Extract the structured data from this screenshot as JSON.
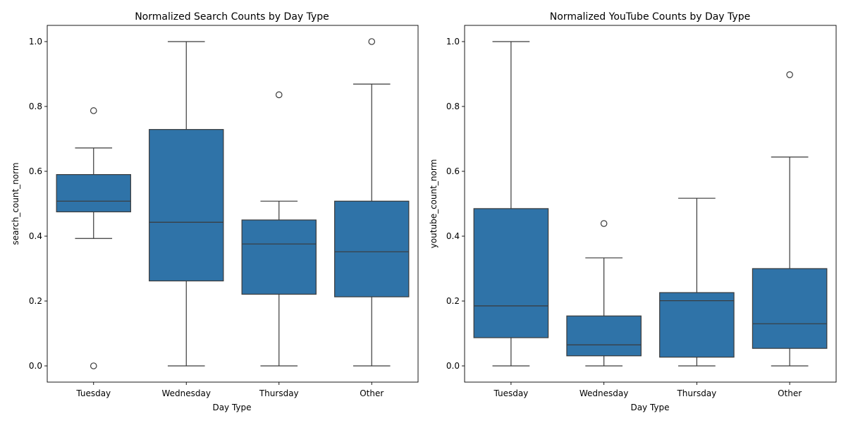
{
  "chart_data": [
    {
      "type": "box",
      "title": "Normalized Search Counts by Day Type",
      "xlabel": "Day Type",
      "ylabel": "search_count_norm",
      "categories": [
        "Tuesday",
        "Wednesday",
        "Thursday",
        "Other"
      ],
      "ylim": [
        -0.05,
        1.05
      ],
      "yticks": [
        0.0,
        0.2,
        0.4,
        0.6,
        0.8,
        1.0
      ],
      "color": "#2f73a8",
      "boxes": [
        {
          "category": "Tuesday",
          "whisker_low": 0.393,
          "q1": 0.475,
          "median": 0.508,
          "q3": 0.59,
          "whisker_high": 0.672,
          "outliers": [
            0.787,
            0.0
          ]
        },
        {
          "category": "Wednesday",
          "whisker_low": 0.0,
          "q1": 0.262,
          "median": 0.443,
          "q3": 0.729,
          "whisker_high": 1.0,
          "outliers": []
        },
        {
          "category": "Thursday",
          "whisker_low": 0.0,
          "q1": 0.221,
          "median": 0.376,
          "q3": 0.45,
          "whisker_high": 0.508,
          "outliers": [
            0.836
          ]
        },
        {
          "category": "Other",
          "whisker_low": 0.0,
          "q1": 0.213,
          "median": 0.352,
          "q3": 0.508,
          "whisker_high": 0.869,
          "outliers": [
            1.0
          ]
        }
      ]
    },
    {
      "type": "box",
      "title": "Normalized YouTube Counts by Day Type",
      "xlabel": "Day Type",
      "ylabel": "youtube_count_norm",
      "categories": [
        "Tuesday",
        "Wednesday",
        "Thursday",
        "Other"
      ],
      "ylim": [
        -0.05,
        1.05
      ],
      "yticks": [
        0.0,
        0.2,
        0.4,
        0.6,
        0.8,
        1.0
      ],
      "color": "#2f73a8",
      "boxes": [
        {
          "category": "Tuesday",
          "whisker_low": 0.0,
          "q1": 0.087,
          "median": 0.185,
          "q3": 0.485,
          "whisker_high": 1.0,
          "outliers": []
        },
        {
          "category": "Wednesday",
          "whisker_low": 0.0,
          "q1": 0.031,
          "median": 0.065,
          "q3": 0.154,
          "whisker_high": 0.333,
          "outliers": [
            0.439
          ]
        },
        {
          "category": "Thursday",
          "whisker_low": 0.0,
          "q1": 0.027,
          "median": 0.201,
          "q3": 0.226,
          "whisker_high": 0.517,
          "outliers": []
        },
        {
          "category": "Other",
          "whisker_low": 0.0,
          "q1": 0.054,
          "median": 0.13,
          "q3": 0.3,
          "whisker_high": 0.644,
          "outliers": [
            0.898
          ]
        }
      ]
    }
  ]
}
